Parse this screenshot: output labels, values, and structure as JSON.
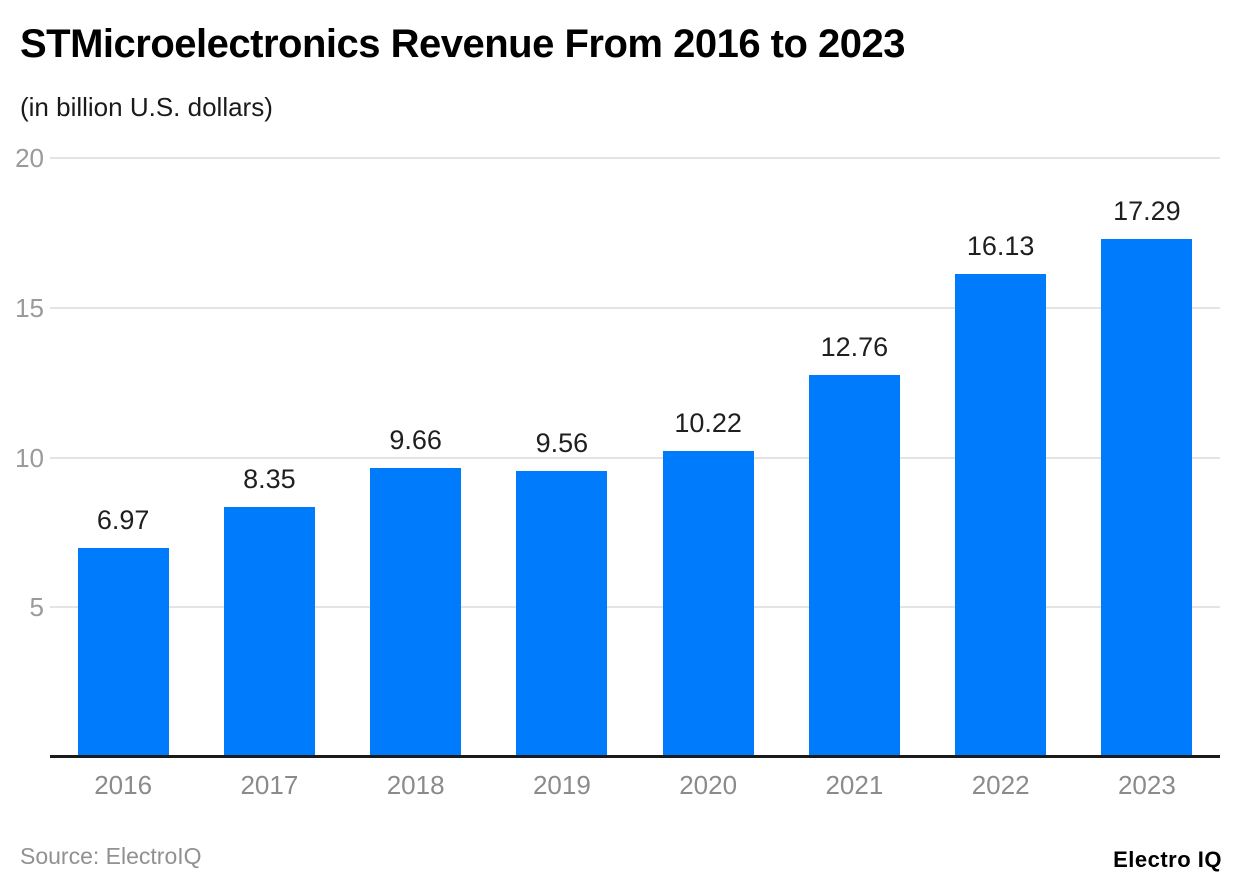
{
  "header": {
    "title": "STMicroelectronics Revenue From 2016 to 2023",
    "subtitle": "(in billion U.S. dollars)"
  },
  "chart_data": {
    "type": "bar",
    "title": "STMicroelectronics Revenue From 2016 to 2023",
    "subtitle": "(in billion U.S. dollars)",
    "categories": [
      "2016",
      "2017",
      "2018",
      "2019",
      "2020",
      "2021",
      "2022",
      "2023"
    ],
    "values": [
      6.97,
      8.35,
      9.66,
      9.56,
      10.22,
      12.76,
      16.13,
      17.29
    ],
    "value_labels": [
      "6.97",
      "8.35",
      "9.66",
      "9.56",
      "10.22",
      "12.76",
      "16.13",
      "17.29"
    ],
    "xlabel": "",
    "ylabel": "",
    "ylim": [
      0,
      20
    ],
    "yticks": [
      5,
      10,
      15,
      20
    ],
    "grid": true,
    "legend": false,
    "bar_color": "#007bfc"
  },
  "footer": {
    "source": "Source: ElectroIQ",
    "logo": "Electro IQ"
  },
  "colors": {
    "bar": "#007bfc",
    "grid": "#e4e4e4",
    "axis_line": "#1a1a1a",
    "ytick_label": "#9a9a9a",
    "xtick_label": "#8b8b8b",
    "value_label": "#1f1f1f",
    "source_text": "#919191",
    "title_text": "#000000"
  }
}
